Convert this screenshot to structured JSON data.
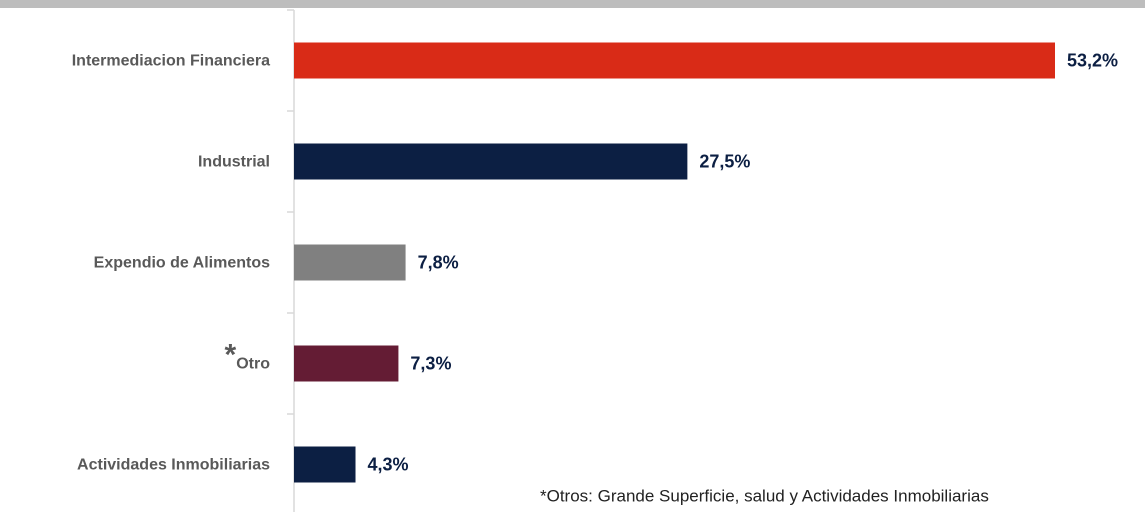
{
  "chart_data": {
    "type": "hbar",
    "categories": [
      "Intermediacion Financiera",
      "Industrial",
      "Expendio de Alimentos",
      "*Otro",
      "Actividades Inmobiliarias"
    ],
    "values": [
      53.2,
      27.5,
      7.8,
      7.3,
      4.3
    ],
    "value_labels": [
      "53,2%",
      "27,5%",
      "7,8%",
      "7,3%",
      "4,3%"
    ],
    "colors": [
      "#d92b17",
      "#0c1f43",
      "#808080",
      "#641c34",
      "#0c1f43"
    ],
    "footnote": "*Otros: Grande Superficie, salud y Actividades Inmobiliarias"
  }
}
